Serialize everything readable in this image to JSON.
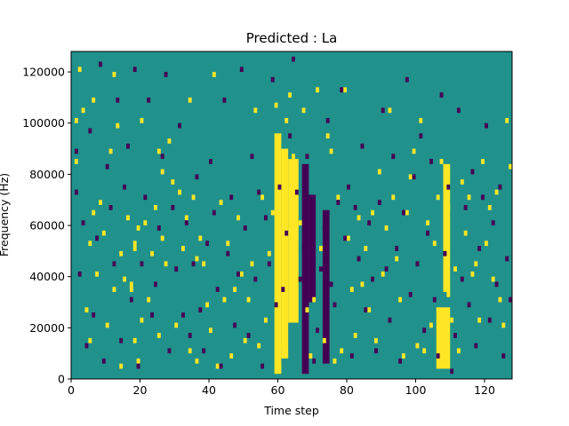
{
  "chart_data": {
    "type": "heatmap",
    "title": "Predicted : La",
    "xlabel": "Time step",
    "ylabel": "Frequency (Hz)",
    "xlim": [
      0,
      128
    ],
    "ylim": [
      0,
      128000
    ],
    "x_ticks": [
      0,
      20,
      40,
      60,
      80,
      100,
      120
    ],
    "y_ticks": [
      0,
      20000,
      40000,
      60000,
      80000,
      100000,
      120000
    ],
    "grid": false,
    "background_color": "#21918c",
    "colors": {
      "low": "#440154",
      "high": "#fde725"
    },
    "n_time_steps": 128,
    "n_freq_bins": 64,
    "bin_height_hz": 2000,
    "cells_high": [
      [
        1,
        100000
      ],
      [
        1,
        84000
      ],
      [
        2,
        120000
      ],
      [
        3,
        104000
      ],
      [
        4,
        26000
      ],
      [
        5,
        14000
      ],
      [
        5,
        52000
      ],
      [
        6,
        64000
      ],
      [
        6,
        108000
      ],
      [
        7,
        40000
      ],
      [
        8,
        68000
      ],
      [
        9,
        56000
      ],
      [
        10,
        20000
      ],
      [
        11,
        88000
      ],
      [
        12,
        34000
      ],
      [
        12,
        118000
      ],
      [
        13,
        98000
      ],
      [
        14,
        4000
      ],
      [
        14,
        48000
      ],
      [
        15,
        38000
      ],
      [
        16,
        62000
      ],
      [
        17,
        34000
      ],
      [
        17,
        36000
      ],
      [
        18,
        14000
      ],
      [
        18,
        50000
      ],
      [
        18,
        52000
      ],
      [
        19,
        6000
      ],
      [
        19,
        58000
      ],
      [
        20,
        22000
      ],
      [
        20,
        100000
      ],
      [
        21,
        60000
      ],
      [
        22,
        30000
      ],
      [
        23,
        48000
      ],
      [
        24,
        66000
      ],
      [
        25,
        16000
      ],
      [
        25,
        88000
      ],
      [
        26,
        54000
      ],
      [
        26,
        80000
      ],
      [
        27,
        44000
      ],
      [
        28,
        92000
      ],
      [
        29,
        76000
      ],
      [
        30,
        20000
      ],
      [
        31,
        72000
      ],
      [
        32,
        50000
      ],
      [
        33,
        62000
      ],
      [
        34,
        10000
      ],
      [
        34,
        108000
      ],
      [
        35,
        70000
      ],
      [
        36,
        6000
      ],
      [
        36,
        46000
      ],
      [
        37,
        54000
      ],
      [
        38,
        44000
      ],
      [
        39,
        28000
      ],
      [
        40,
        18000
      ],
      [
        41,
        118000
      ],
      [
        42,
        4000
      ],
      [
        43,
        68000
      ],
      [
        44,
        30000
      ],
      [
        45,
        52000
      ],
      [
        46,
        8000
      ],
      [
        47,
        34000
      ],
      [
        48,
        62000
      ],
      [
        49,
        40000
      ],
      [
        50,
        14000
      ],
      [
        51,
        30000
      ],
      [
        52,
        44000
      ],
      [
        53,
        104000
      ],
      [
        54,
        12000
      ],
      [
        55,
        70000
      ],
      [
        56,
        22000
      ],
      [
        57,
        48000
      ],
      [
        58,
        64000
      ],
      [
        59,
        106000
      ],
      [
        60,
        4000
      ],
      [
        60,
        12000
      ],
      [
        61,
        16000
      ],
      [
        62,
        100000
      ],
      [
        63,
        110000
      ],
      [
        64,
        86000
      ],
      [
        65,
        58000
      ],
      [
        66,
        60000
      ],
      [
        67,
        104000
      ],
      [
        68,
        26000
      ],
      [
        69,
        8000
      ],
      [
        70,
        30000
      ],
      [
        71,
        112000
      ],
      [
        72,
        50000
      ],
      [
        73,
        14000
      ],
      [
        74,
        94000
      ],
      [
        75,
        88000
      ],
      [
        76,
        6000
      ],
      [
        77,
        70000
      ],
      [
        78,
        10000
      ],
      [
        79,
        112000
      ],
      [
        80,
        54000
      ],
      [
        81,
        34000
      ],
      [
        82,
        16000
      ],
      [
        83,
        62000
      ],
      [
        84,
        36000
      ],
      [
        85,
        50000
      ],
      [
        86,
        26000
      ],
      [
        87,
        64000
      ],
      [
        88,
        14000
      ],
      [
        89,
        80000
      ],
      [
        90,
        40000
      ],
      [
        91,
        58000
      ],
      [
        92,
        104000
      ],
      [
        93,
        70000
      ],
      [
        94,
        46000
      ],
      [
        95,
        30000
      ],
      [
        96,
        8000
      ],
      [
        97,
        64000
      ],
      [
        98,
        78000
      ],
      [
        99,
        88000
      ],
      [
        100,
        12000
      ],
      [
        101,
        100000
      ],
      [
        102,
        10000
      ],
      [
        103,
        60000
      ],
      [
        104,
        20000
      ],
      [
        105,
        52000
      ],
      [
        106,
        70000
      ],
      [
        107,
        84000
      ],
      [
        108,
        6000
      ],
      [
        109,
        32000
      ],
      [
        109,
        66000
      ],
      [
        110,
        22000
      ],
      [
        111,
        42000
      ],
      [
        112,
        10000
      ],
      [
        113,
        76000
      ],
      [
        114,
        56000
      ],
      [
        115,
        70000
      ],
      [
        116,
        40000
      ],
      [
        117,
        44000
      ],
      [
        118,
        22000
      ],
      [
        119,
        84000
      ],
      [
        120,
        52000
      ],
      [
        121,
        66000
      ],
      [
        122,
        38000
      ],
      [
        123,
        72000
      ],
      [
        124,
        30000
      ],
      [
        125,
        20000
      ],
      [
        126,
        100000
      ],
      [
        127,
        82000
      ]
    ],
    "cells_low": [
      [
        1,
        88000
      ],
      [
        1,
        72000
      ],
      [
        2,
        40000
      ],
      [
        3,
        60000
      ],
      [
        4,
        12000
      ],
      [
        5,
        96000
      ],
      [
        6,
        24000
      ],
      [
        7,
        54000
      ],
      [
        8,
        122000
      ],
      [
        9,
        6000
      ],
      [
        10,
        82000
      ],
      [
        11,
        66000
      ],
      [
        12,
        44000
      ],
      [
        13,
        108000
      ],
      [
        14,
        14000
      ],
      [
        15,
        74000
      ],
      [
        16,
        90000
      ],
      [
        17,
        30000
      ],
      [
        18,
        120000
      ],
      [
        19,
        4000
      ],
      [
        20,
        44000
      ],
      [
        21,
        70000
      ],
      [
        22,
        108000
      ],
      [
        23,
        24000
      ],
      [
        24,
        36000
      ],
      [
        25,
        58000
      ],
      [
        26,
        86000
      ],
      [
        27,
        118000
      ],
      [
        28,
        10000
      ],
      [
        29,
        66000
      ],
      [
        30,
        42000
      ],
      [
        31,
        98000
      ],
      [
        32,
        24000
      ],
      [
        33,
        60000
      ],
      [
        34,
        16000
      ],
      [
        35,
        44000
      ],
      [
        36,
        78000
      ],
      [
        37,
        26000
      ],
      [
        38,
        10000
      ],
      [
        39,
        52000
      ],
      [
        40,
        84000
      ],
      [
        41,
        64000
      ],
      [
        42,
        34000
      ],
      [
        43,
        4000
      ],
      [
        44,
        108000
      ],
      [
        45,
        48000
      ],
      [
        46,
        70000
      ],
      [
        47,
        20000
      ],
      [
        48,
        40000
      ],
      [
        49,
        120000
      ],
      [
        50,
        58000
      ],
      [
        51,
        16000
      ],
      [
        52,
        86000
      ],
      [
        53,
        38000
      ],
      [
        54,
        72000
      ],
      [
        55,
        4000
      ],
      [
        56,
        62000
      ],
      [
        57,
        44000
      ],
      [
        58,
        116000
      ],
      [
        59,
        28000
      ],
      [
        60,
        74000
      ],
      [
        61,
        34000
      ],
      [
        62,
        56000
      ],
      [
        63,
        94000
      ],
      [
        64,
        124000
      ],
      [
        65,
        72000
      ],
      [
        66,
        38000
      ],
      [
        67,
        50000
      ],
      [
        68,
        86000
      ],
      [
        69,
        70000
      ],
      [
        70,
        6000
      ],
      [
        71,
        18000
      ],
      [
        72,
        42000
      ],
      [
        73,
        58000
      ],
      [
        74,
        100000
      ],
      [
        75,
        36000
      ],
      [
        76,
        28000
      ],
      [
        77,
        68000
      ],
      [
        78,
        112000
      ],
      [
        79,
        54000
      ],
      [
        80,
        74000
      ],
      [
        81,
        8000
      ],
      [
        82,
        66000
      ],
      [
        83,
        46000
      ],
      [
        84,
        90000
      ],
      [
        85,
        26000
      ],
      [
        86,
        60000
      ],
      [
        87,
        38000
      ],
      [
        88,
        10000
      ],
      [
        89,
        68000
      ],
      [
        90,
        104000
      ],
      [
        91,
        42000
      ],
      [
        92,
        22000
      ],
      [
        93,
        86000
      ],
      [
        94,
        50000
      ],
      [
        95,
        6000
      ],
      [
        96,
        64000
      ],
      [
        97,
        116000
      ],
      [
        98,
        32000
      ],
      [
        99,
        78000
      ],
      [
        100,
        44000
      ],
      [
        101,
        94000
      ],
      [
        102,
        18000
      ],
      [
        103,
        56000
      ],
      [
        104,
        84000
      ],
      [
        105,
        30000
      ],
      [
        106,
        8000
      ],
      [
        107,
        110000
      ],
      [
        108,
        48000
      ],
      [
        109,
        74000
      ],
      [
        110,
        2000
      ],
      [
        111,
        16000
      ],
      [
        112,
        104000
      ],
      [
        113,
        38000
      ],
      [
        114,
        66000
      ],
      [
        115,
        28000
      ],
      [
        116,
        80000
      ],
      [
        117,
        12000
      ],
      [
        118,
        50000
      ],
      [
        119,
        70000
      ],
      [
        120,
        98000
      ],
      [
        121,
        22000
      ],
      [
        122,
        60000
      ],
      [
        123,
        36000
      ],
      [
        124,
        74000
      ],
      [
        125,
        8000
      ],
      [
        126,
        46000
      ],
      [
        127,
        30000
      ]
    ],
    "bands_high": [
      {
        "x_from": 59,
        "x_to": 61,
        "y_from": 2000,
        "y_to": 96000
      },
      {
        "x_from": 61,
        "x_to": 63,
        "y_from": 8000,
        "y_to": 90000
      },
      {
        "x_from": 63,
        "x_to": 66,
        "y_from": 22000,
        "y_to": 86000
      },
      {
        "x_from": 106,
        "x_to": 110,
        "y_from": 4000,
        "y_to": 28000
      },
      {
        "x_from": 108,
        "x_to": 110,
        "y_from": 34000,
        "y_to": 84000
      }
    ],
    "bands_low": [
      {
        "x_from": 67,
        "x_to": 69,
        "y_from": 2000,
        "y_to": 84000
      },
      {
        "x_from": 69,
        "x_to": 71,
        "y_from": 30000,
        "y_to": 72000
      },
      {
        "x_from": 73,
        "x_to": 75,
        "y_from": 6000,
        "y_to": 66000
      }
    ]
  }
}
